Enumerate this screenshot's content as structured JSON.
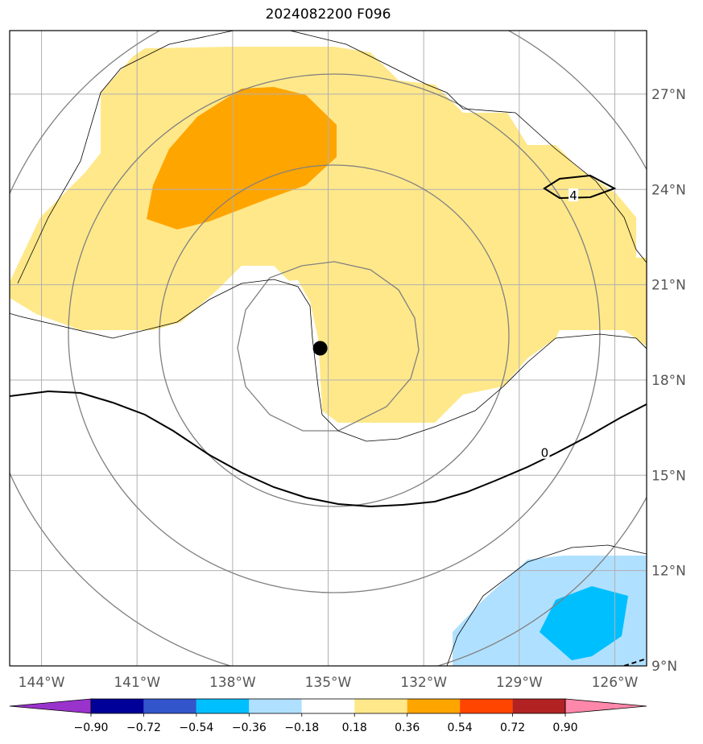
{
  "title": "2024082200 F096",
  "map": {
    "lon_range": [
      -145.0,
      -125.0
    ],
    "lat_range": [
      9.0,
      29.0
    ],
    "lon_ticks": [
      {
        "value": -144,
        "label": "144°W"
      },
      {
        "value": -141,
        "label": "141°W"
      },
      {
        "value": -138,
        "label": "138°W"
      },
      {
        "value": -135,
        "label": "135°W"
      },
      {
        "value": -132,
        "label": "132°W"
      },
      {
        "value": -129,
        "label": "129°W"
      },
      {
        "value": -126,
        "label": "126°W"
      }
    ],
    "lat_ticks": [
      {
        "value": 9,
        "label": "9°N"
      },
      {
        "value": 12,
        "label": "12°N"
      },
      {
        "value": 15,
        "label": "15°N"
      },
      {
        "value": 18,
        "label": "18°N"
      },
      {
        "value": 21,
        "label": "21°N"
      },
      {
        "value": 24,
        "label": "24°N"
      },
      {
        "value": 27,
        "label": "27°N"
      }
    ],
    "center_marker": {
      "lon": -135.25,
      "lat": 19.0,
      "color": "#000000"
    },
    "contour_labels": [
      {
        "text": "0",
        "lon": -128.2,
        "lat": 15.7
      },
      {
        "text": "4",
        "lon": -127.3,
        "lat": 23.8
      }
    ],
    "gridlines": true
  },
  "colorbar": {
    "colors": [
      "#9933cc",
      "#000099",
      "#3355cc",
      "#00bfff",
      "#b0e0ff",
      "#ffffff",
      "#ffe88a",
      "#ffa500",
      "#ff4500",
      "#b22222",
      "#ff88aa"
    ],
    "tick_labels": [
      "−0.90",
      "−0.72",
      "−0.54",
      "−0.36",
      "−0.18",
      "0.18",
      "0.36",
      "0.54",
      "0.72",
      "0.90"
    ]
  }
}
